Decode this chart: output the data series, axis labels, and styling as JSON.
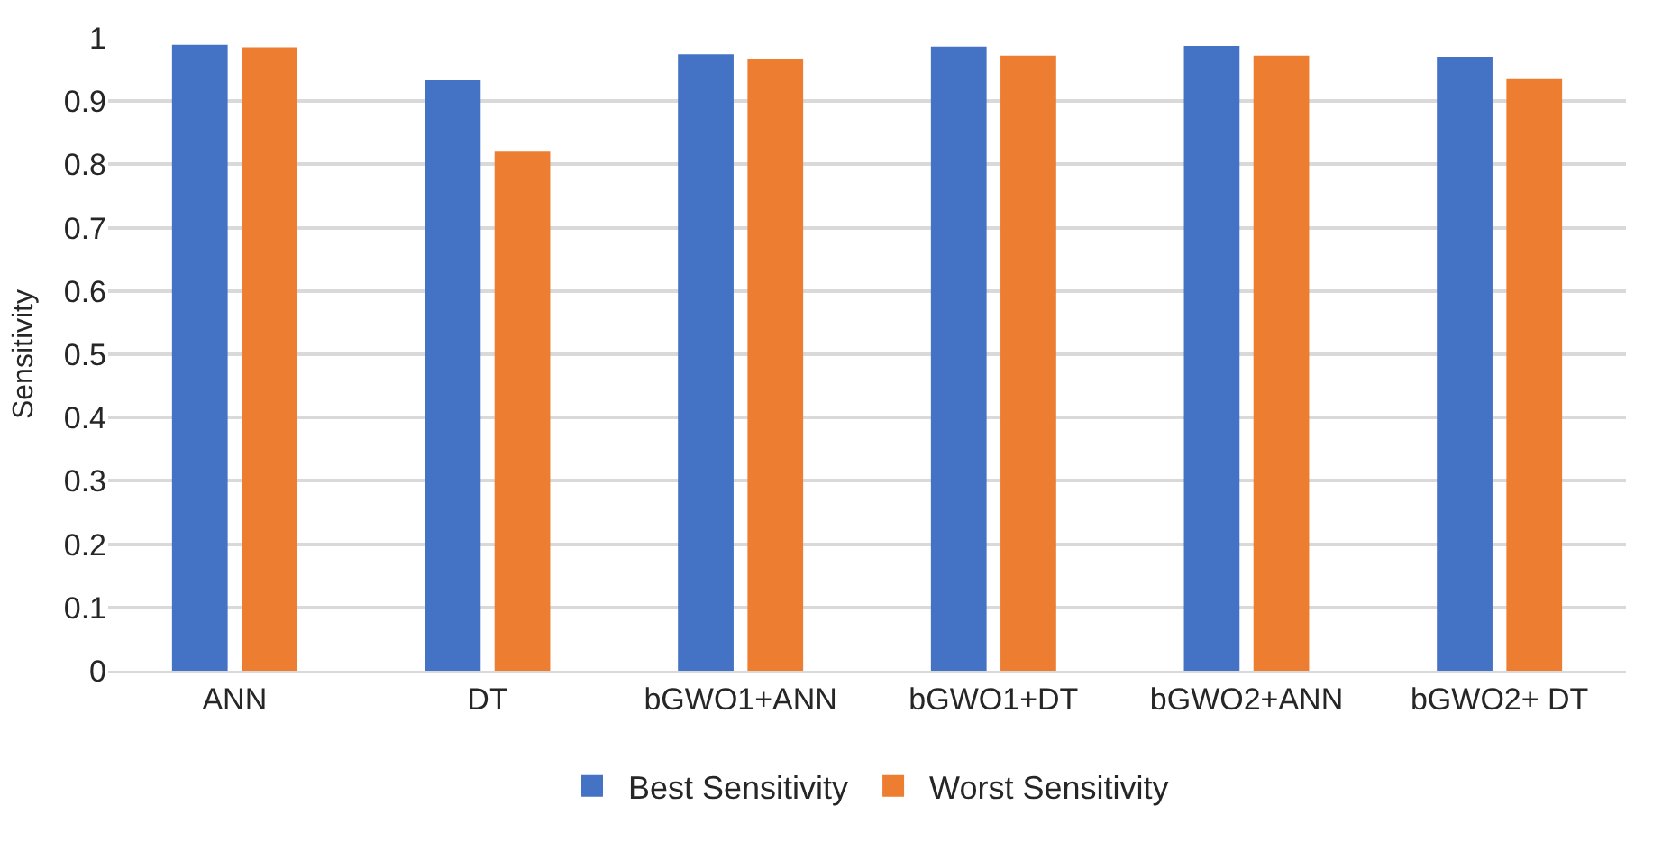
{
  "chart_data": {
    "type": "bar",
    "ylabel": "Sensitivity",
    "categories": [
      "ANN",
      "DT",
      "bGWO1+ANN",
      "bGWO1+DT",
      "bGWO2+ANN",
      "bGWO2+ DT"
    ],
    "series": [
      {
        "name": "Best Sensitivity",
        "color": "#4472c4",
        "values": [
          0.989,
          0.933,
          0.974,
          0.986,
          0.987,
          0.97
        ]
      },
      {
        "name": "Worst Sensitivity",
        "color": "#ed7d31",
        "values": [
          0.985,
          0.82,
          0.966,
          0.972,
          0.972,
          0.935
        ]
      }
    ],
    "ylim": [
      0,
      1
    ],
    "yticks": [
      0,
      0.1,
      0.2,
      0.3,
      0.4,
      0.5,
      0.6,
      0.7,
      0.8,
      0.9,
      1
    ],
    "grid": "y",
    "legend": "bottom"
  }
}
